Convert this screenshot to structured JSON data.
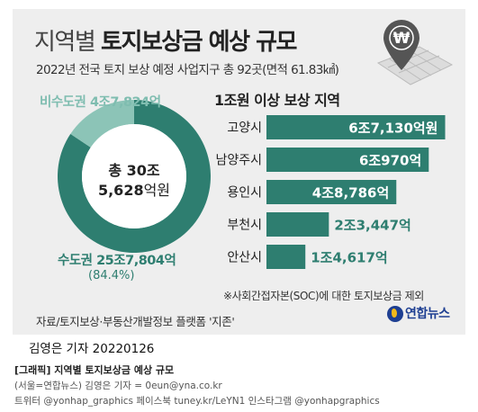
{
  "header": {
    "title_plain": "지역별",
    "title_bold": "토지보상금 예상 규모",
    "subtitle": "2022년 전국 토지 보상 예정 사업지구 총 92곳(면적 61.83㎢)"
  },
  "icon": "map-pin-won-icon",
  "chart_data": [
    {
      "type": "pie",
      "style": "donut",
      "slices": [
        {
          "name": "수도권",
          "value_label": "25조7,804억",
          "value": 257804,
          "percent_label": "(84.4%)",
          "color": "#2e7e70"
        },
        {
          "name": "비수도권",
          "value_label": "4조7,824억",
          "value": 47824,
          "color": "#8cc4b7"
        }
      ],
      "center": {
        "line1": "총 30조",
        "line2_value": "5,628",
        "line2_unit": "억원"
      }
    },
    {
      "type": "bar",
      "orientation": "horizontal",
      "title": "1조원 이상 보상 지역",
      "categories": [
        "고양시",
        "남양주시",
        "용인시",
        "부천시",
        "안산시"
      ],
      "values": [
        67130,
        60970,
        48786,
        23447,
        14617
      ],
      "value_labels": [
        "6조7,130억원",
        "6조970억",
        "4조8,786억",
        "2조3,447억",
        "1조4,617억"
      ],
      "bar_color": "#2e7e70",
      "label_inside_color": "#ffffff",
      "label_outside_color": "#2e7e70",
      "xlim": [
        0,
        70000
      ]
    }
  ],
  "note": "※사회간접자본(SOC)에 대한 토지보상금 제외",
  "source": "자료/토지보상·부동산개발정보 플랫폼 '지존'",
  "logo": {
    "text": "연합뉴스"
  },
  "byline": "김영은 기자  20220126",
  "caption": {
    "title": "[그래픽] 지역별 토지보상금 예상 규모",
    "line2": "(서울=연합뉴스) 김영은 기자 = 0eun@yna.co.kr",
    "line3": "트위터 @yonhap_graphics 페이스북 tuney.kr/LeYN1 인스타그램 @yonhapgraphics"
  }
}
